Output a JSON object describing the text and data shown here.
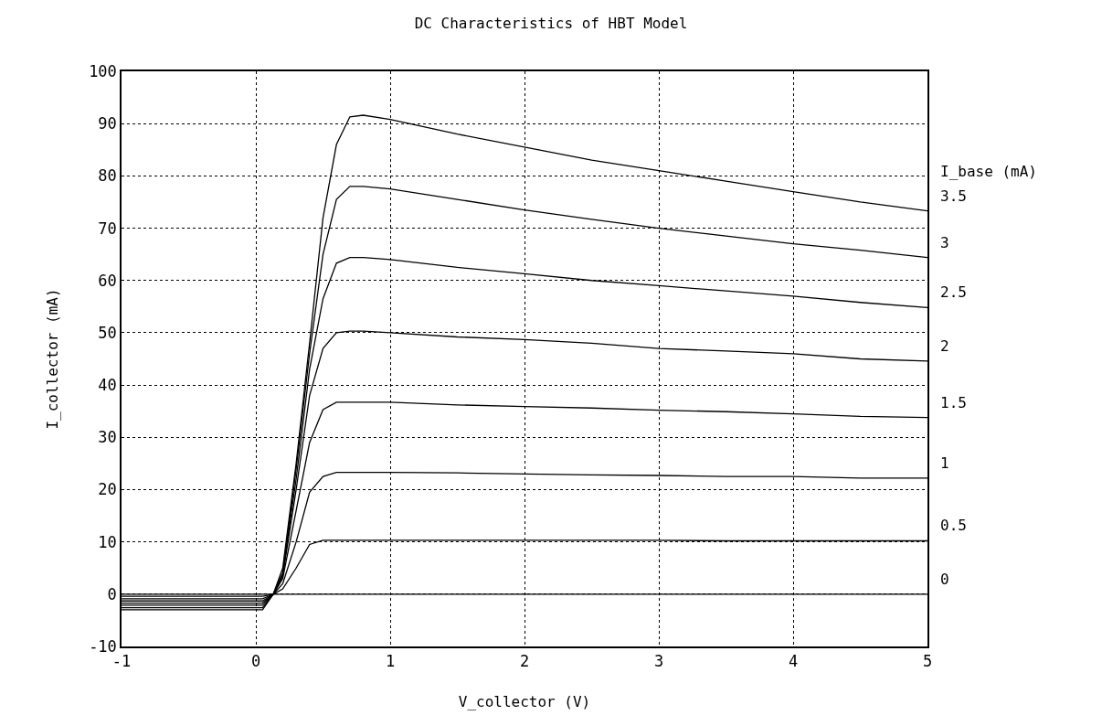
{
  "chart_data": {
    "type": "line",
    "title": "DC Characteristics of HBT Model",
    "xlabel": "V_collector (V)",
    "ylabel": "I_collector (mA)",
    "legend_title": "I_base (mA)",
    "x": [
      -1,
      0.05,
      0.13,
      0.2,
      0.3,
      0.4,
      0.5,
      0.6,
      0.7,
      0.8,
      1,
      1.5,
      2,
      2.5,
      3,
      3.5,
      4,
      4.5,
      5
    ],
    "series": [
      {
        "name": "3.5",
        "color": "#000000",
        "values": [
          -3,
          -3,
          0,
          5,
          25,
          48,
          72,
          86,
          91.3,
          91.6,
          90.8,
          88,
          85.5,
          83,
          81,
          79,
          77,
          75,
          73.3
        ]
      },
      {
        "name": "3",
        "color": "#000000",
        "values": [
          -2.6,
          -2.6,
          0,
          4,
          24,
          46,
          65,
          75.5,
          78,
          78,
          77.5,
          75.5,
          73.5,
          71.7,
          70,
          68.5,
          67,
          65.8,
          64.4
        ]
      },
      {
        "name": "2.5",
        "color": "#000000",
        "values": [
          -2.1,
          -2.1,
          0,
          4,
          22,
          43,
          56.5,
          63.3,
          64.4,
          64.4,
          64,
          62.5,
          61.3,
          60,
          59,
          58,
          57,
          55.8,
          54.8
        ]
      },
      {
        "name": "2",
        "color": "#000000",
        "values": [
          -1.7,
          -1.7,
          0,
          3.5,
          20,
          38,
          47,
          50,
          50.3,
          50.3,
          50,
          49.2,
          48.7,
          48,
          47,
          46.5,
          46,
          45,
          44.6
        ]
      },
      {
        "name": "1.5",
        "color": "#000000",
        "values": [
          -1.3,
          -1.3,
          0,
          3,
          16,
          29,
          35.3,
          36.7,
          36.7,
          36.7,
          36.7,
          36.2,
          35.9,
          35.6,
          35.2,
          34.9,
          34.5,
          34,
          33.8
        ]
      },
      {
        "name": "1",
        "color": "#000000",
        "values": [
          -0.9,
          -0.9,
          0,
          2,
          10,
          19.5,
          22.5,
          23.3,
          23.3,
          23.3,
          23.3,
          23.2,
          23,
          22.8,
          22.7,
          22.5,
          22.5,
          22.2,
          22.2
        ]
      },
      {
        "name": "0.5",
        "color": "#000000",
        "values": [
          -0.4,
          -0.4,
          0,
          1,
          5,
          9.5,
          10.3,
          10.3,
          10.3,
          10.3,
          10.3,
          10.3,
          10.3,
          10.3,
          10.3,
          10.2,
          10.2,
          10.2,
          10.2
        ]
      },
      {
        "name": "0",
        "color": "#000000",
        "values": [
          0,
          0,
          0,
          0,
          0,
          0,
          0,
          0,
          0,
          0,
          0,
          0,
          0,
          0,
          0,
          0,
          0,
          0,
          0
        ]
      }
    ],
    "xlim": [
      -1,
      5
    ],
    "xticks": [
      -1,
      0,
      1,
      2,
      3,
      4,
      5
    ],
    "ylim": [
      -10,
      100
    ],
    "yticks": [
      -10,
      0,
      10,
      20,
      30,
      40,
      50,
      60,
      70,
      80,
      90,
      100
    ],
    "grid": true,
    "legend": false,
    "marker": "none",
    "line_style": "solid"
  }
}
